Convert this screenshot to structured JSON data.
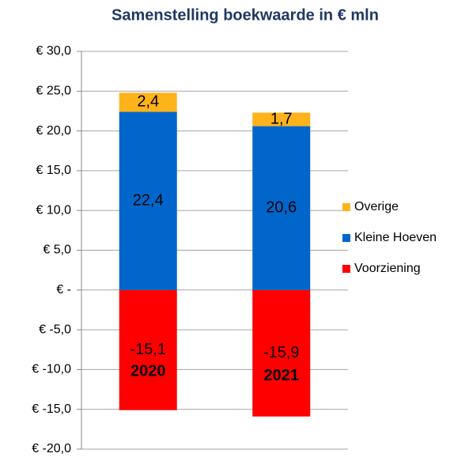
{
  "chart_data": {
    "type": "stacked_bar",
    "title": "Samenstelling boekwaarde in € mln",
    "categories": [
      "2020",
      "2021"
    ],
    "series": [
      {
        "name": "Voorziening",
        "color": "#ff0000",
        "values": [
          -15.1,
          -15.9
        ],
        "value_labels": [
          "-15,1",
          "-15,9"
        ]
      },
      {
        "name": "Kleine Hoeven",
        "color": "#0066cc",
        "values": [
          22.4,
          20.6
        ],
        "value_labels": [
          "22,4",
          "20,6"
        ]
      },
      {
        "name": "Overige",
        "color": "#ffb31a",
        "values": [
          2.4,
          1.7
        ],
        "value_labels": [
          "2,4",
          "1,7"
        ]
      }
    ],
    "ylim": [
      -20,
      30
    ],
    "yticks": [
      {
        "value": -20,
        "label": "€ -20,0"
      },
      {
        "value": -15,
        "label": "€ -15,0"
      },
      {
        "value": -10,
        "label": "€ -10,0"
      },
      {
        "value": -5,
        "label": "€ -5,0"
      },
      {
        "value": 0,
        "label": "€ -"
      },
      {
        "value": 5,
        "label": "€ 5,0"
      },
      {
        "value": 10,
        "label": "€ 10,0"
      },
      {
        "value": 15,
        "label": "€ 15,0"
      },
      {
        "value": 20,
        "label": "€ 20,0"
      },
      {
        "value": 25,
        "label": "€ 25,0"
      },
      {
        "value": 30,
        "label": "€ 30,0"
      }
    ],
    "grid": true,
    "legend": "right"
  }
}
